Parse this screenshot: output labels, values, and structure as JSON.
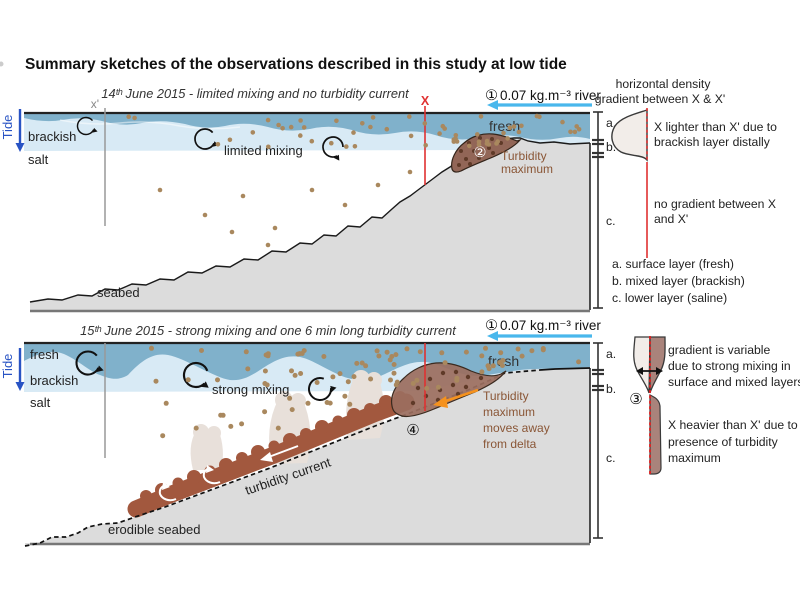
{
  "title": "Summary sketches of the observations described in this study at low tide",
  "panel1": {
    "header": "14ᵗʰ June 2015 - limited mixing and no turbidity current",
    "x_prime_label": "x'",
    "x_label": "X",
    "tide_label": "Tide",
    "brackish_label": "brackish",
    "salt_label": "salt",
    "fresh_label": "fresh",
    "limited_mixing_label": "limited mixing",
    "seabed_label": "seabed",
    "river_num": "①",
    "river_label": "0.07 kg.m⁻³ river",
    "turbidity_max_num": "②",
    "turbidity_max_label": [
      "Turbidity",
      "maximum"
    ]
  },
  "panel2": {
    "header": "15ᵗʰ June 2015 - strong mixing and one 6 min long turbidity current",
    "tide_label": "Tide",
    "fresh_left_label": "fresh",
    "brackish_label": "brackish",
    "salt_label": "salt",
    "strong_mixing_label": "strong mixing",
    "fresh_right_label": "fresh",
    "river_num": "①",
    "river_label": "0.07 kg.m⁻³ river",
    "turbidity_current_label": "turbidity current",
    "erodible_seabed_label": "erodible seabed",
    "num4": "④",
    "turbidity_max_note": [
      "Turbidity",
      "maximum",
      "moves away",
      "from delta"
    ]
  },
  "profile1": {
    "header": [
      "horizontal density",
      "gradient between X & X'"
    ],
    "note_top": [
      "X lighter than X' due to",
      "brackish layer distally"
    ],
    "note_bottom": [
      "no gradient between X",
      "and X'"
    ],
    "layer_a": "a.",
    "layer_b": "b.",
    "layer_c": "c.",
    "legend": [
      "a. surface layer (fresh)",
      "b. mixed layer (brackish)",
      "c. lower layer (saline)"
    ]
  },
  "profile2": {
    "num3": "③",
    "note_top": [
      "gradient is variable",
      "due to strong mixing in",
      "surface and mixed layers"
    ],
    "note_bottom": [
      "X heavier than X' due to",
      "presence of turbidity",
      "maximum"
    ],
    "layer_a": "a.",
    "layer_b": "b.",
    "layer_c": "c."
  },
  "colors": {
    "fresh": "#80b1cb",
    "brackish": "#d8eaf5",
    "seabed": "#dcdcdc",
    "turbidity_band": "#a2583e",
    "turbidity_blob": "#926657",
    "plume": "#e8e0da",
    "dot": "#a9885e",
    "tide_blue": "#2853c4",
    "river_arrow": "#49b7ec",
    "red_line": "#e03131",
    "profile_fill": "#f2ede9",
    "profile_mauve": "#a9837b"
  }
}
